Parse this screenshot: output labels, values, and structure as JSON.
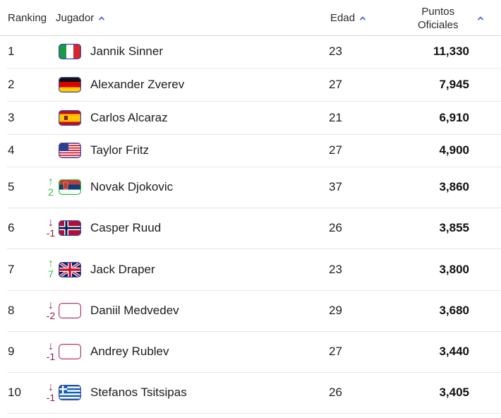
{
  "header": {
    "ranking": "Ranking",
    "player": "Jugador",
    "age": "Edad",
    "points_line1": "Puntos",
    "points_line2": "Oficiales"
  },
  "rows": [
    {
      "rank": "1",
      "name": "Jannik Sinner",
      "age": "23",
      "points": "11,330",
      "flag": "italy-flag",
      "movement": null
    },
    {
      "rank": "2",
      "name": "Alexander Zverev",
      "age": "27",
      "points": "7,945",
      "flag": "germany-flag",
      "movement": null
    },
    {
      "rank": "3",
      "name": "Carlos Alcaraz",
      "age": "21",
      "points": "6,910",
      "flag": "spain-flag",
      "movement": null
    },
    {
      "rank": "4",
      "name": "Taylor Fritz",
      "age": "27",
      "points": "4,900",
      "flag": "usa-flag",
      "movement": null
    },
    {
      "rank": "5",
      "name": "Novak Djokovic",
      "age": "37",
      "points": "3,860",
      "flag": "serbia-flag",
      "movement": {
        "dir": "up",
        "value": "2"
      }
    },
    {
      "rank": "6",
      "name": "Casper Ruud",
      "age": "26",
      "points": "3,855",
      "flag": "norway-flag",
      "movement": {
        "dir": "down",
        "value": "-1"
      }
    },
    {
      "rank": "7",
      "name": "Jack Draper",
      "age": "23",
      "points": "3,800",
      "flag": "uk-flag",
      "movement": {
        "dir": "up",
        "value": "7"
      }
    },
    {
      "rank": "8",
      "name": "Daniil Medvedev",
      "age": "29",
      "points": "3,680",
      "flag": "blank-flag",
      "movement": {
        "dir": "down",
        "value": "-2"
      }
    },
    {
      "rank": "9",
      "name": "Andrey Rublev",
      "age": "27",
      "points": "3,440",
      "flag": "blank-flag",
      "movement": {
        "dir": "down",
        "value": "-1"
      }
    },
    {
      "rank": "10",
      "name": "Stefanos Tsitsipas",
      "age": "26",
      "points": "3,405",
      "flag": "greece-flag",
      "movement": {
        "dir": "down",
        "value": "-1"
      }
    }
  ],
  "colors": {
    "up": "#2fbf3b",
    "down": "#8c1d3f",
    "header_chevron": "#3b5bdb"
  }
}
